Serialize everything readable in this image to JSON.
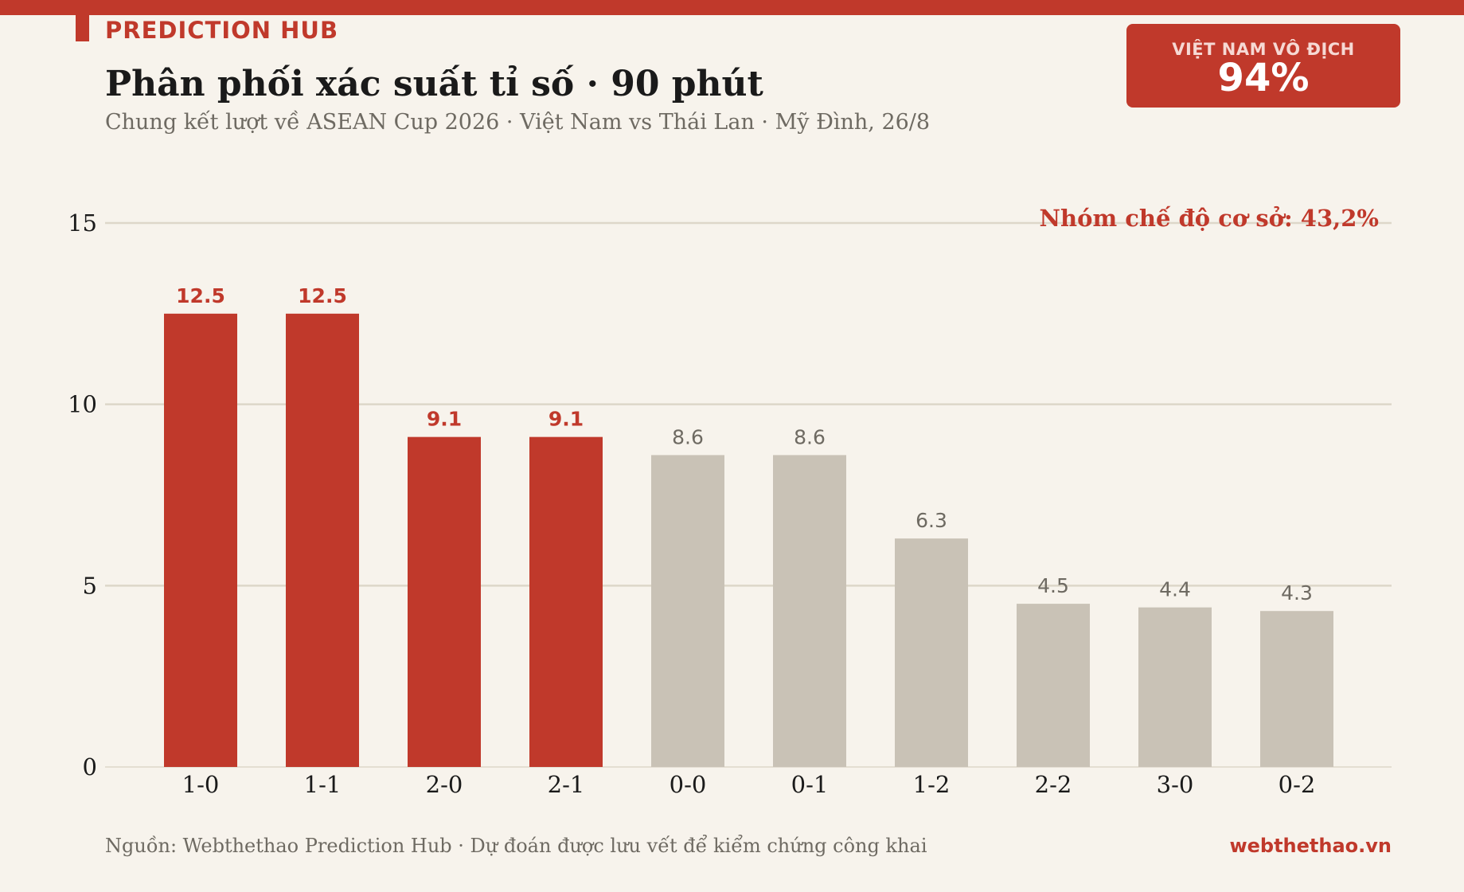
{
  "header": {
    "kicker": "PREDICTION HUB",
    "title": "Phân phối xác suất tỉ số · 90 phút",
    "subtitle": "Chung kết lượt về ASEAN Cup 2026 · Việt Nam vs Thái Lan · Mỹ Đình, 26/8"
  },
  "badge": {
    "label": "VIỆT NAM VÔ ĐỊCH",
    "value": "94%"
  },
  "footer": {
    "source": "Nguồn: Webthethao Prediction Hub · Dự đoán được lưu vết để kiểm chứng công khai",
    "brand": "webthethao.vn"
  },
  "colors": {
    "accent": "#c0392b",
    "muted_bar": "#c9c2b6",
    "muted_label": "#6e6a62",
    "grid": "#ddd7c9",
    "background": "#f7f3ec"
  },
  "chart_data": {
    "type": "bar",
    "categories": [
      "1-0",
      "1-1",
      "2-0",
      "2-1",
      "0-0",
      "0-1",
      "1-2",
      "2-2",
      "3-0",
      "0-2"
    ],
    "values": [
      12.5,
      12.5,
      9.1,
      9.1,
      8.6,
      8.6,
      6.3,
      4.5,
      4.4,
      4.3
    ],
    "highlighted": [
      true,
      true,
      true,
      true,
      false,
      false,
      false,
      false,
      false,
      false
    ],
    "annotation": "Nhóm chế độ cơ sở: 43,2%",
    "ylim": [
      0,
      15
    ],
    "yticks": [
      0,
      5,
      10,
      15
    ],
    "grid": true,
    "title": "",
    "xlabel": "",
    "ylabel": ""
  }
}
